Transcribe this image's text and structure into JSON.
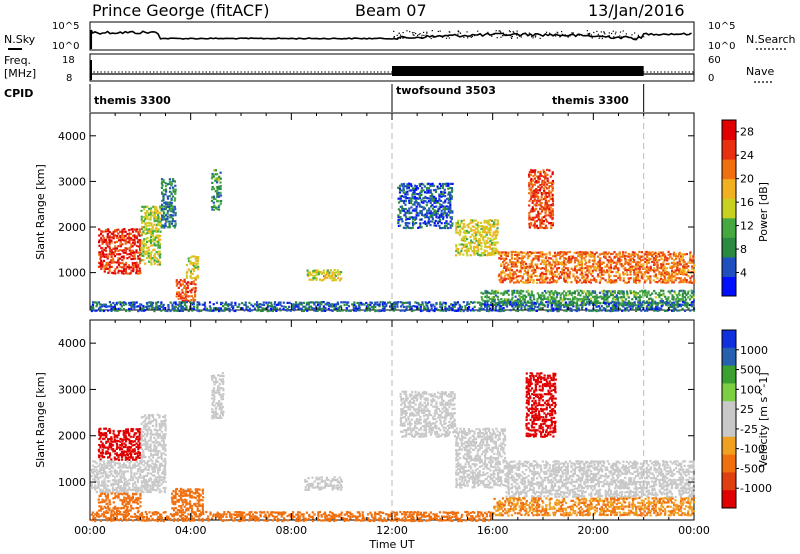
{
  "header": {
    "station": "Prince George (fitACF)",
    "beam": "Beam 07",
    "date": "13/Jan/2016"
  },
  "strips": {
    "nsky_label": "N.Sky",
    "nsearch_label": "N.Search",
    "freq_label": "Freq.",
    "freq_unit": "[MHz]",
    "nave_label": "Nave",
    "cpid_label": "CPID",
    "top_left_ticks": [
      "10^5",
      "10^0"
    ],
    "top_right_ticks": [
      "10^5",
      "10^0"
    ],
    "freq_ticks": [
      "18",
      "8"
    ],
    "nave_ticks": [
      "60",
      "0"
    ]
  },
  "cpid_segments": [
    {
      "label": "themis 3300",
      "start": 0.0,
      "end": 12.0
    },
    {
      "label": "twofsound 3503",
      "start": 12.0,
      "end": 22.0
    },
    {
      "label": "themis 3300",
      "start": 18.2,
      "end": 22.0
    }
  ],
  "colors": {
    "power_scale": [
      "#0010ff",
      "#2050c0",
      "#2a8a40",
      "#45a840",
      "#c8d020",
      "#f0b020",
      "#f07010",
      "#e83010",
      "#e00000"
    ],
    "velocity_scale": [
      "#1030e0",
      "#2860b0",
      "#3aa030",
      "#7ad040",
      "#c8c8c8",
      "#c8c8c8",
      "#f0a020",
      "#f07010",
      "#e04010",
      "#e00000"
    ]
  },
  "chart_data": [
    {
      "type": "heatmap",
      "title": "",
      "xlabel": "Time UT",
      "ylabel": "Slant Range [km]",
      "x_ticks": [
        "00:00",
        "04:00",
        "08:00",
        "12:00",
        "16:00",
        "20:00",
        "00:00"
      ],
      "y_ticks": [
        "1000",
        "2000",
        "3000",
        "4000"
      ],
      "xlim": [
        0,
        24
      ],
      "ylim": [
        180,
        4500
      ],
      "colorbar_label": "Power [dB]",
      "colorbar_ticks": [
        "4",
        "8",
        "12",
        "16",
        "20",
        "24",
        "28"
      ],
      "colorbar_range": [
        0,
        30
      ],
      "scatter_regions": [
        {
          "t0": 0.3,
          "t1": 2.0,
          "r0": 1000,
          "r1": 2000,
          "level": 26
        },
        {
          "t0": 2.0,
          "t1": 2.8,
          "r0": 1200,
          "r1": 2500,
          "level": 14
        },
        {
          "t0": 2.8,
          "t1": 3.4,
          "r0": 2000,
          "r1": 3100,
          "level": 8
        },
        {
          "t0": 3.4,
          "t1": 4.2,
          "r0": 400,
          "r1": 900,
          "level": 24
        },
        {
          "t0": 3.8,
          "t1": 4.3,
          "r0": 900,
          "r1": 1400,
          "level": 16
        },
        {
          "t0": 4.8,
          "t1": 5.2,
          "r0": 2400,
          "r1": 3300,
          "level": 10
        },
        {
          "t0": 8.6,
          "t1": 10.0,
          "r0": 850,
          "r1": 1100,
          "level": 16
        },
        {
          "t0": 12.2,
          "t1": 14.4,
          "r0": 2000,
          "r1": 3000,
          "level": 5
        },
        {
          "t0": 14.5,
          "t1": 16.2,
          "r0": 1400,
          "r1": 2200,
          "level": 16
        },
        {
          "t0": 16.2,
          "t1": 24.0,
          "r0": 800,
          "r1": 1500,
          "level": 22
        },
        {
          "t0": 17.4,
          "t1": 18.4,
          "r0": 2000,
          "r1": 3300,
          "level": 24
        },
        {
          "t0": 15.5,
          "t1": 24.0,
          "r0": 300,
          "r1": 650,
          "level": 10
        },
        {
          "t0": 0.0,
          "t1": 24.0,
          "r0": 180,
          "r1": 400,
          "level": 6
        }
      ]
    },
    {
      "type": "heatmap",
      "title": "",
      "xlabel": "Time UT",
      "ylabel": "Slant Range [km]",
      "x_ticks": [
        "00:00",
        "04:00",
        "08:00",
        "12:00",
        "16:00",
        "20:00",
        "00:00"
      ],
      "y_ticks": [
        "1000",
        "2000",
        "3000",
        "4000"
      ],
      "xlim": [
        0,
        24
      ],
      "ylim": [
        180,
        4500
      ],
      "colorbar_label": "Velocity [m s^-1]",
      "colorbar_ticks": [
        "1000",
        "500",
        "100",
        "25",
        "-25",
        "-100",
        "-500",
        "-1000"
      ],
      "scatter_regions": [
        {
          "t0": 0.3,
          "t1": 2.0,
          "r0": 1500,
          "r1": 2200,
          "level": -900
        },
        {
          "t0": 0.0,
          "t1": 3.0,
          "r0": 800,
          "r1": 1500,
          "level": 0
        },
        {
          "t0": 2.0,
          "t1": 3.0,
          "r0": 1500,
          "r1": 2500,
          "level": 0
        },
        {
          "t0": 0.3,
          "t1": 2.0,
          "r0": 400,
          "r1": 800,
          "level": -200
        },
        {
          "t0": 3.2,
          "t1": 4.5,
          "r0": 400,
          "r1": 900,
          "level": -150
        },
        {
          "t0": 4.8,
          "t1": 5.3,
          "r0": 2400,
          "r1": 3400,
          "level": 0
        },
        {
          "t0": 8.5,
          "t1": 10.0,
          "r0": 850,
          "r1": 1150,
          "level": 0
        },
        {
          "t0": 12.3,
          "t1": 14.5,
          "r0": 2000,
          "r1": 3000,
          "level": 0
        },
        {
          "t0": 14.5,
          "t1": 16.5,
          "r0": 900,
          "r1": 2200,
          "level": 0
        },
        {
          "t0": 16.5,
          "t1": 24.0,
          "r0": 700,
          "r1": 1500,
          "level": 0
        },
        {
          "t0": 17.3,
          "t1": 18.5,
          "r0": 2000,
          "r1": 3400,
          "level": -700
        },
        {
          "t0": 16.0,
          "t1": 24.0,
          "r0": 300,
          "r1": 700,
          "level": -100
        },
        {
          "t0": 0.0,
          "t1": 16.0,
          "r0": 180,
          "r1": 400,
          "level": -150
        }
      ]
    }
  ]
}
